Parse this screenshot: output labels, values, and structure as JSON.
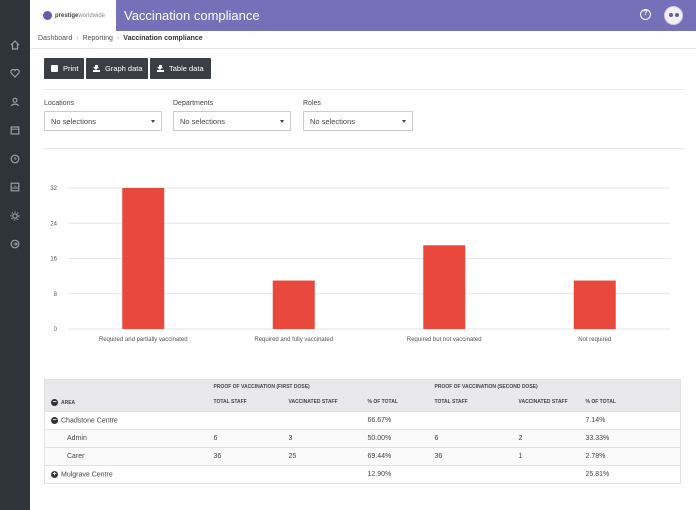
{
  "brand": {
    "name_bold": "prestige",
    "name_light": "worldwide"
  },
  "header": {
    "title": "Vaccination compliance"
  },
  "sidebar": {
    "icons": [
      "home-icon",
      "heart-icon",
      "user-icon",
      "calendar-icon",
      "clock-icon",
      "report-icon",
      "gear-icon",
      "logout-icon"
    ]
  },
  "breadcrumb": [
    "Dashboard",
    "Reporting",
    "Vaccination compliance"
  ],
  "toolbar": {
    "print": "Print",
    "graph_data": "Graph data",
    "table_data": "Table data"
  },
  "filters": [
    {
      "label": "Locations",
      "value": "No selections"
    },
    {
      "label": "Departments",
      "value": "No selections"
    },
    {
      "label": "Roles",
      "value": "No selections"
    }
  ],
  "chart_data": {
    "type": "bar",
    "categories": [
      "Required and partially vaccinated",
      "Required and fully vaccinated",
      "Required but not vaccinated",
      "Not required"
    ],
    "values": [
      32,
      11,
      19,
      11
    ],
    "yticks": [
      0,
      8,
      16,
      24,
      32
    ],
    "ylim": [
      0,
      32
    ],
    "grid": true,
    "color": "#e8493c"
  },
  "table": {
    "group_headers": [
      "PROOF OF VACCINATION (FIRST DOSE)",
      "PROOF OF VACCINATION (SECOND DOSE)"
    ],
    "area_label": "AREA",
    "columns": [
      "TOTAL STAFF",
      "VACCINATED STAFF",
      "% OF TOTAL",
      "TOTAL STAFF",
      "VACCINATED STAFF",
      "% OF TOTAL"
    ],
    "rows": [
      {
        "name": "Chadstone Centre",
        "expand": "−",
        "cells": [
          "",
          "",
          "66.67%",
          "",
          "",
          "7.14%"
        ]
      },
      {
        "name": "Admin",
        "cells": [
          "6",
          "3",
          "50.00%",
          "6",
          "2",
          "33.33%"
        ]
      },
      {
        "name": "Carer",
        "cells": [
          "36",
          "25",
          "69.44%",
          "36",
          "1",
          "2.78%"
        ]
      },
      {
        "name": "Mulgrave Centre",
        "expand": "+",
        "cells": [
          "",
          "",
          "12.90%",
          "",
          "",
          "25.81%"
        ]
      }
    ]
  }
}
